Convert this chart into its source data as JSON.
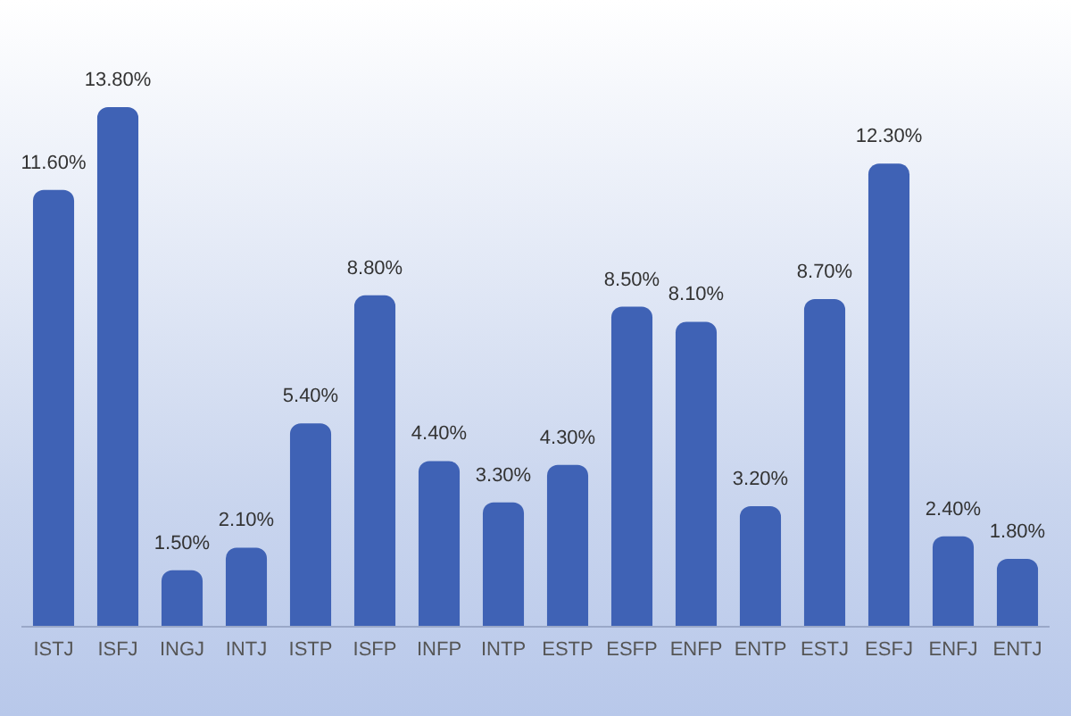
{
  "chart_data": {
    "type": "bar",
    "categories": [
      "ISTJ",
      "ISFJ",
      "INGJ",
      "INTJ",
      "ISTP",
      "ISFP",
      "INFP",
      "INTP",
      "ESTP",
      "ESFP",
      "ENFP",
      "ENTP",
      "ESTJ",
      "ESFJ",
      "ENFJ",
      "ENTJ"
    ],
    "values": [
      11.6,
      13.8,
      1.5,
      2.1,
      5.4,
      8.8,
      4.4,
      3.3,
      4.3,
      8.5,
      8.1,
      3.2,
      8.7,
      12.3,
      2.4,
      1.8
    ],
    "value_labels": [
      "11.60%",
      "13.80%",
      "1.50%",
      "2.10%",
      "5.40%",
      "8.80%",
      "4.40%",
      "3.30%",
      "4.30%",
      "8.50%",
      "8.10%",
      "3.20%",
      "8.70%",
      "12.30%",
      "2.40%",
      "1.80%"
    ],
    "color": "#3f62b5",
    "grid": false
  }
}
